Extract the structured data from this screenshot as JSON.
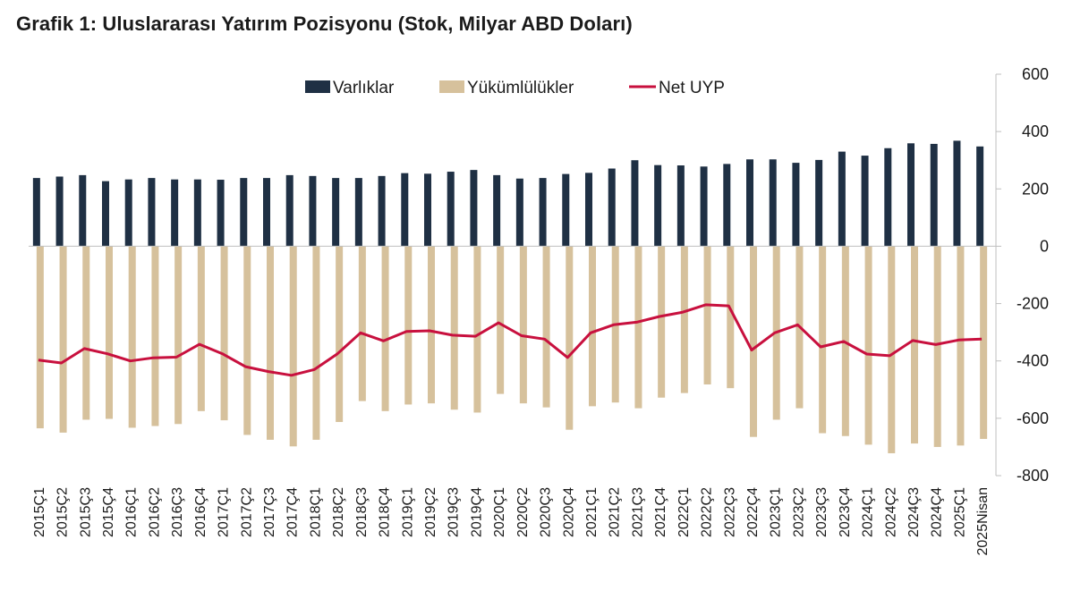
{
  "title": "Grafik 1: Uluslararası Yatırım Pozisyonu (Stok, Milyar ABD Doları)",
  "chart_data": {
    "type": "bar",
    "title": "Grafik 1: Uluslararası Yatırım Pozisyonu (Stok, Milyar ABD Doları)",
    "xlabel": "",
    "ylabel": "",
    "ylim": [
      -800,
      600
    ],
    "yticks": [
      600,
      400,
      200,
      0,
      -200,
      -400,
      -600,
      -800
    ],
    "y_axis_position": "right",
    "grid": false,
    "legend_position": "top",
    "categories": [
      "2015Ç1",
      "2015Ç2",
      "2015Ç3",
      "2015Ç4",
      "2016Ç1",
      "2016Ç2",
      "2016Ç3",
      "2016Ç4",
      "2017Ç1",
      "2017Ç2",
      "2017Ç3",
      "2017Ç4",
      "2018Ç1",
      "2018Ç2",
      "2018Ç3",
      "2018Ç4",
      "2019Ç1",
      "2019Ç2",
      "2019Ç3",
      "2019Ç4",
      "2020Ç1",
      "2020Ç2",
      "2020Ç3",
      "2020Ç4",
      "2021Ç1",
      "2021Ç2",
      "2021Ç3",
      "2021Ç4",
      "2022Ç1",
      "2022Ç2",
      "2022Ç3",
      "2022Ç4",
      "2023Ç1",
      "2023Ç2",
      "2023Ç3",
      "2023Ç4",
      "2024Ç1",
      "2024Ç2",
      "2024Ç3",
      "2024Ç4",
      "2025Ç1",
      "2025Nisan"
    ],
    "series": [
      {
        "name": "Varlıklar",
        "kind": "bar",
        "color": "#1f3044",
        "values": [
          238,
          243,
          248,
          227,
          233,
          238,
          233,
          233,
          232,
          238,
          238,
          248,
          245,
          238,
          238,
          245,
          255,
          253,
          260,
          266,
          248,
          236,
          238,
          252,
          256,
          271,
          300,
          283,
          282,
          278,
          287,
          303,
          303,
          291,
          301,
          330,
          316,
          342,
          359,
          357,
          368,
          348
        ]
      },
      {
        "name": "Yükümlülükler",
        "kind": "bar",
        "color": "#d6c19c",
        "values": [
          -635,
          -650,
          -605,
          -602,
          -633,
          -627,
          -620,
          -575,
          -607,
          -658,
          -675,
          -698,
          -675,
          -613,
          -540,
          -575,
          -552,
          -548,
          -570,
          -580,
          -515,
          -548,
          -562,
          -640,
          -558,
          -545,
          -565,
          -528,
          -512,
          -482,
          -495,
          -665,
          -605,
          -565,
          -652,
          -662,
          -692,
          -722,
          -688,
          -700,
          -695,
          -672
        ]
      },
      {
        "name": "Net UYP",
        "kind": "line",
        "color": "#c8103e",
        "values": [
          -397,
          -407,
          -357,
          -375,
          -400,
          -389,
          -387,
          -342,
          -375,
          -420,
          -437,
          -450,
          -430,
          -375,
          -302,
          -330,
          -297,
          -295,
          -310,
          -314,
          -267,
          -312,
          -324,
          -388,
          -302,
          -274,
          -265,
          -245,
          -230,
          -204,
          -208,
          -362,
          -302,
          -274,
          -351,
          -332,
          -376,
          -382,
          -329,
          -343,
          -327,
          -324
        ]
      }
    ]
  }
}
